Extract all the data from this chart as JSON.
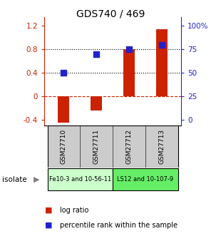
{
  "title": "GDS740 / 469",
  "samples": [
    "GSM27710",
    "GSM27711",
    "GSM27712",
    "GSM27713"
  ],
  "log_ratios": [
    -0.45,
    -0.25,
    0.8,
    1.15
  ],
  "percentile_ranks": [
    0.4,
    0.72,
    0.8,
    0.88
  ],
  "bar_color": "#cc2200",
  "dot_color": "#2222cc",
  "ylim": [
    -0.5,
    1.35
  ],
  "yticks_left": [
    -0.4,
    0.0,
    0.4,
    0.8,
    1.2
  ],
  "ytick_labels_left": [
    "-0.4",
    "0",
    "0.4",
    "0.8",
    "1.2"
  ],
  "yticks_right_vals": [
    -0.4,
    0.0,
    0.4,
    0.8,
    1.2
  ],
  "ytick_labels_right": [
    "0",
    "25",
    "50",
    "75",
    "100%"
  ],
  "dotted_lines": [
    0.4,
    0.8
  ],
  "zero_line": 0.0,
  "group1_label": "Fe10-3 and 10-56-11",
  "group2_label": "LS12 and 10-107-9",
  "group1_color": "#ccffcc",
  "group2_color": "#66ee66",
  "group_bg": "#cccccc",
  "isolate_label": "isolate",
  "legend_red": "log ratio",
  "legend_blue": "percentile rank within the sample",
  "bar_width": 0.35,
  "figsize": [
    3.1,
    3.45
  ],
  "dpi": 100
}
